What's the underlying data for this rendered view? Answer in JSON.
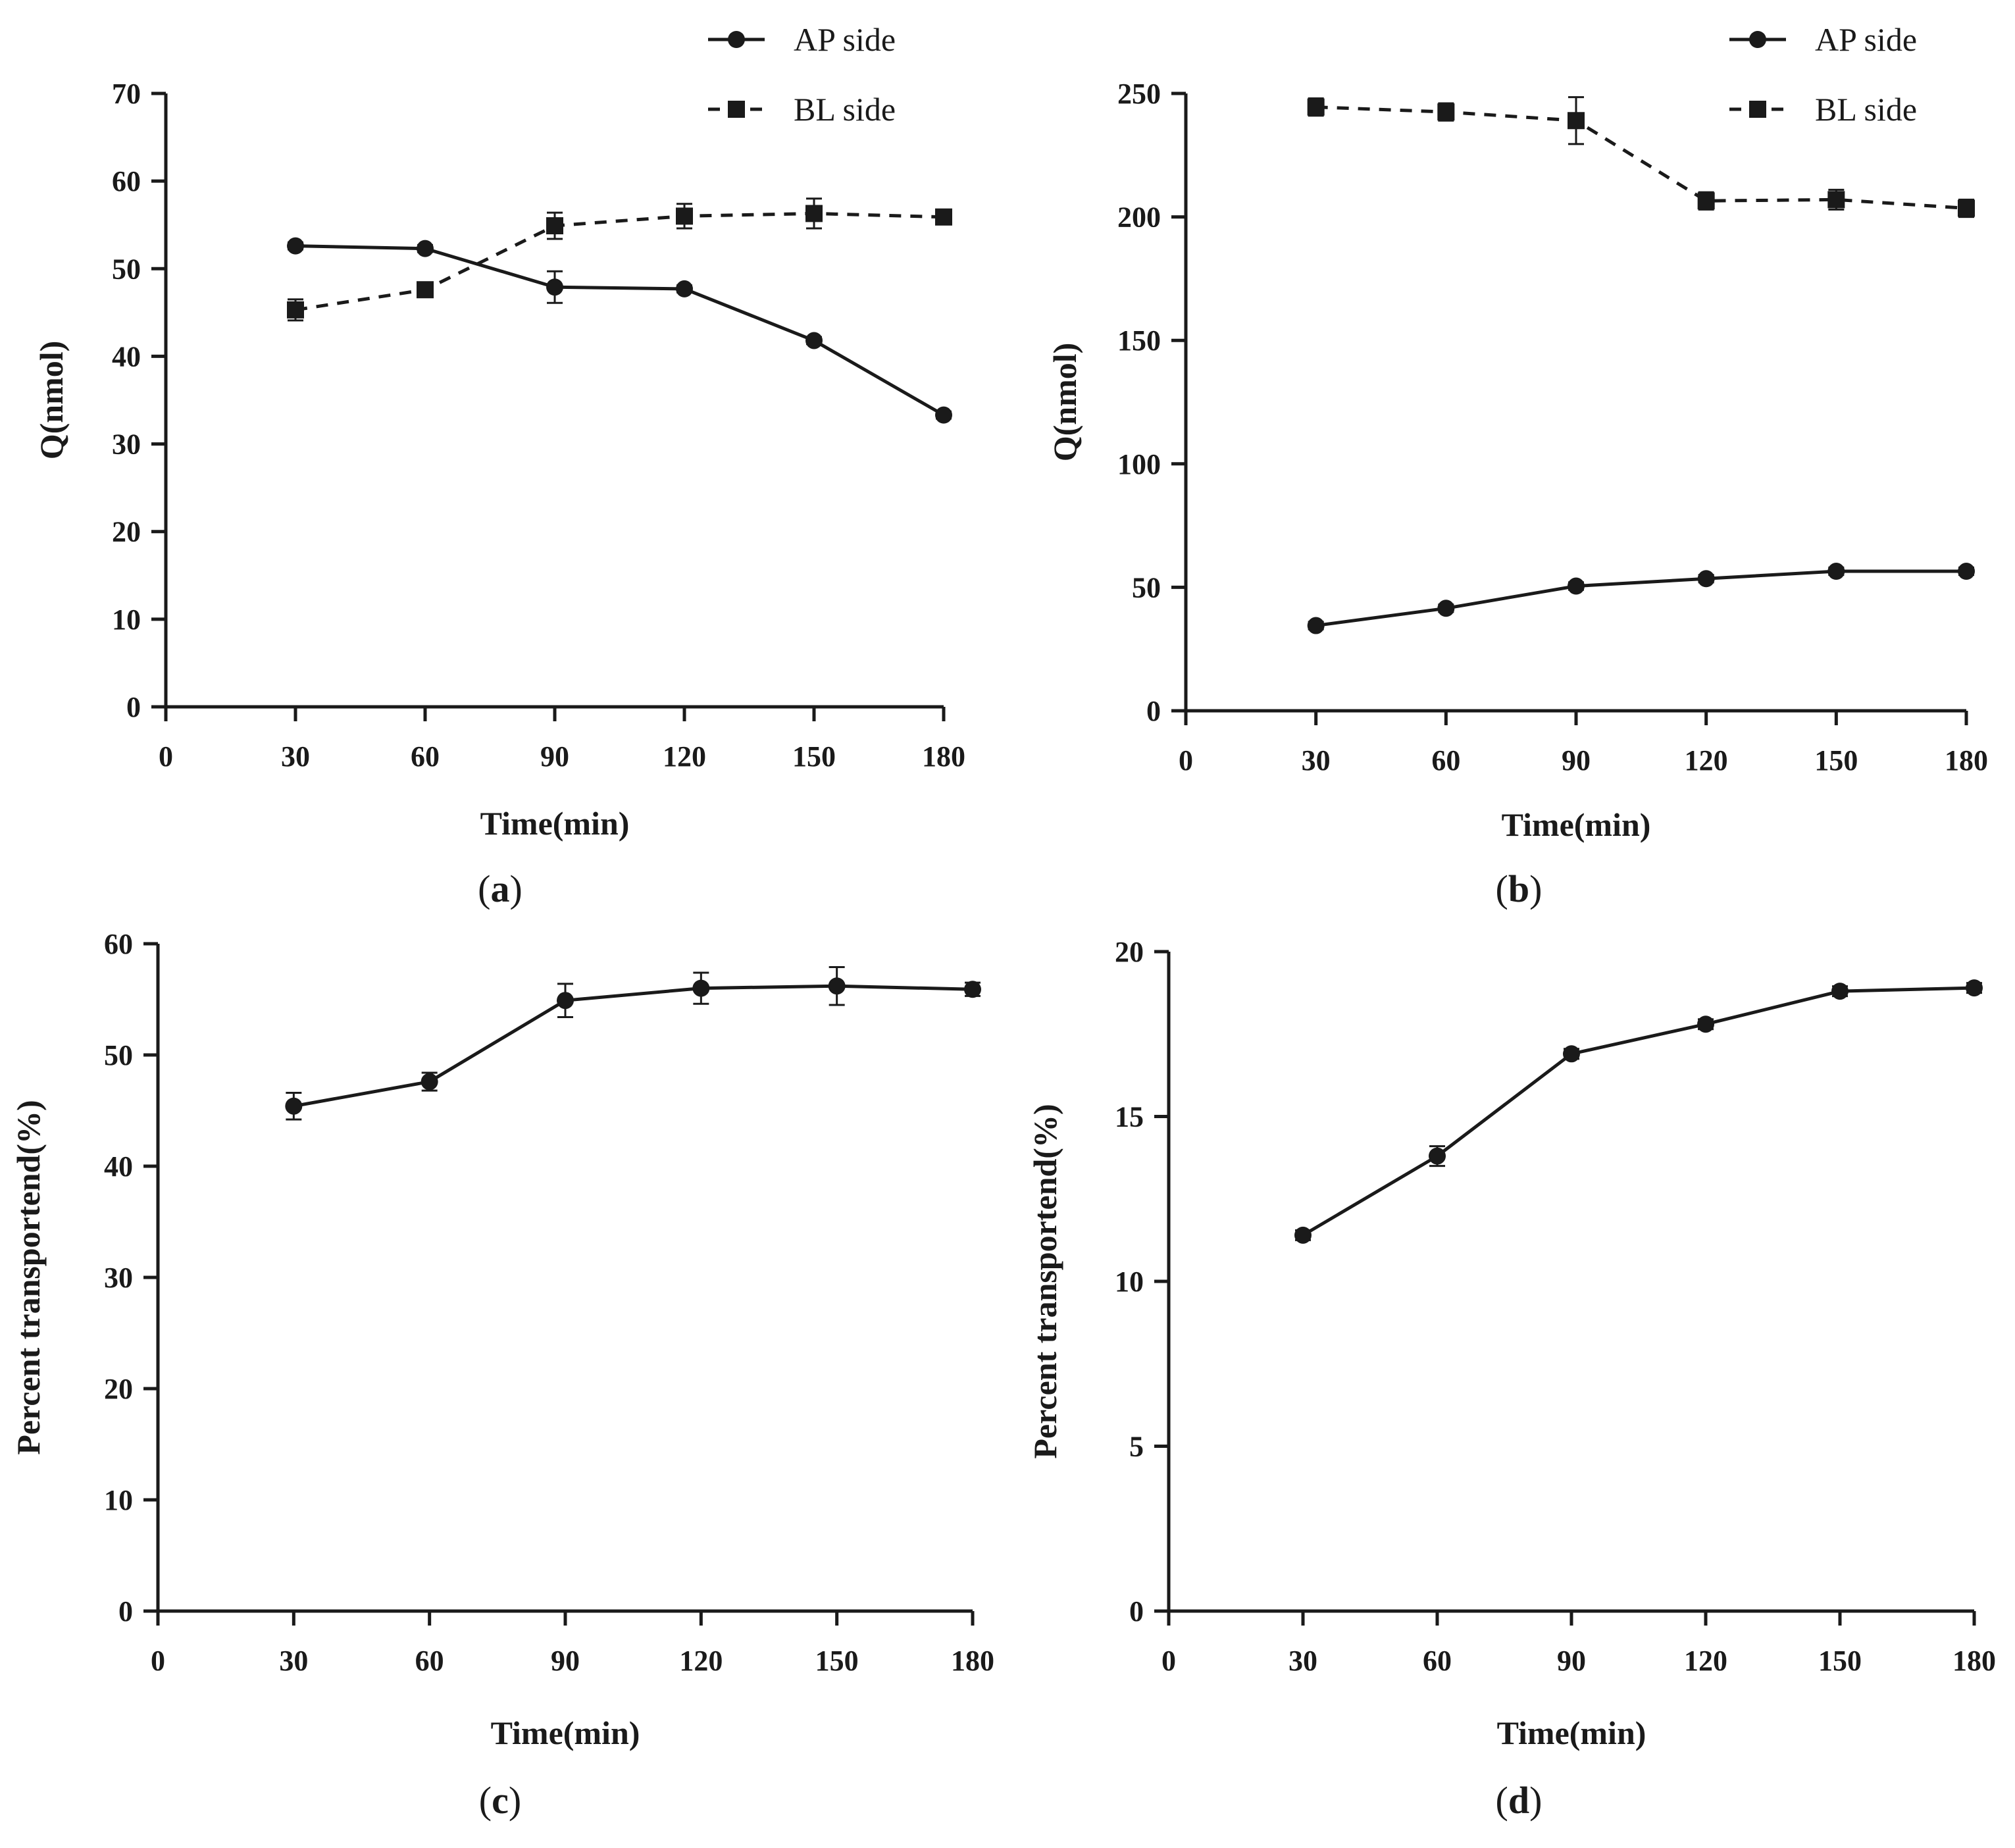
{
  "chart_data": [
    {
      "id": "a",
      "type": "line",
      "panel_label": "a",
      "xlabel": "Time(min)",
      "ylabel": "Q(nmol)",
      "xlim": [
        0,
        180
      ],
      "ylim": [
        0,
        70
      ],
      "xticks": [
        0,
        30,
        60,
        90,
        120,
        150,
        180
      ],
      "yticks": [
        0,
        10,
        20,
        30,
        40,
        50,
        60,
        70
      ],
      "legend": "top-right",
      "series": [
        {
          "name": "AP side",
          "marker": "circle",
          "line": "solid",
          "x": [
            30,
            60,
            90,
            120,
            150,
            180
          ],
          "y": [
            52.6,
            52.3,
            47.9,
            47.7,
            41.8,
            33.3
          ],
          "err": [
            0.4,
            0.4,
            1.8,
            0.4,
            0.4,
            0.4
          ]
        },
        {
          "name": "BL side",
          "marker": "square",
          "line": "dashed",
          "x": [
            30,
            60,
            90,
            120,
            150,
            180
          ],
          "y": [
            45.3,
            47.6,
            54.9,
            56.0,
            56.3,
            55.9
          ],
          "err": [
            1.2,
            0.8,
            1.5,
            1.4,
            1.7,
            0.6
          ]
        }
      ]
    },
    {
      "id": "b",
      "type": "line",
      "panel_label": "b",
      "xlabel": "Time(min)",
      "ylabel": "Q(nmol)",
      "xlim": [
        0,
        180
      ],
      "ylim": [
        0,
        250
      ],
      "xticks": [
        0,
        30,
        60,
        90,
        120,
        150,
        180
      ],
      "yticks": [
        0,
        50,
        100,
        150,
        200,
        250
      ],
      "legend": "top-right",
      "series": [
        {
          "name": "AP side",
          "marker": "circle",
          "line": "solid",
          "x": [
            30,
            60,
            90,
            120,
            150,
            180
          ],
          "y": [
            34.5,
            41.5,
            50.5,
            53.5,
            56.5,
            56.5
          ],
          "err": [
            1.5,
            1.5,
            1.5,
            1.5,
            1.5,
            1.5
          ]
        },
        {
          "name": "BL side",
          "marker": "square",
          "line": "dashed",
          "x": [
            30,
            60,
            90,
            120,
            150,
            180
          ],
          "y": [
            244.5,
            242.5,
            239.0,
            206.5,
            207.0,
            203.5
          ],
          "err": [
            3.5,
            3.5,
            9.5,
            3.5,
            4.0,
            3.5
          ]
        }
      ]
    },
    {
      "id": "c",
      "type": "line",
      "panel_label": "c",
      "xlabel": "Time(min)",
      "ylabel": "Percent transportend(%)",
      "xlim": [
        0,
        180
      ],
      "ylim": [
        0,
        60
      ],
      "xticks": [
        0,
        30,
        60,
        90,
        120,
        150,
        180
      ],
      "yticks": [
        0,
        10,
        20,
        30,
        40,
        50,
        60
      ],
      "series": [
        {
          "marker": "circle",
          "line": "solid",
          "x": [
            30,
            60,
            90,
            120,
            150,
            180
          ],
          "y": [
            45.4,
            47.6,
            54.9,
            56.0,
            56.2,
            55.9
          ],
          "err": [
            1.2,
            0.8,
            1.5,
            1.4,
            1.7,
            0.6
          ]
        }
      ]
    },
    {
      "id": "d",
      "type": "line",
      "panel_label": "d",
      "xlabel": "Time(min)",
      "ylabel": "Percent transportend(%)",
      "xlim": [
        0,
        180
      ],
      "ylim": [
        0,
        20
      ],
      "xticks": [
        0,
        30,
        60,
        90,
        120,
        150,
        180
      ],
      "yticks": [
        0,
        5,
        10,
        15,
        20
      ],
      "series": [
        {
          "marker": "circle",
          "line": "solid",
          "x": [
            30,
            60,
            90,
            120,
            150,
            180
          ],
          "y": [
            11.4,
            13.8,
            16.9,
            17.8,
            18.8,
            18.9
          ],
          "err": [
            0.15,
            0.3,
            0.15,
            0.15,
            0.15,
            0.15
          ]
        }
      ]
    }
  ]
}
